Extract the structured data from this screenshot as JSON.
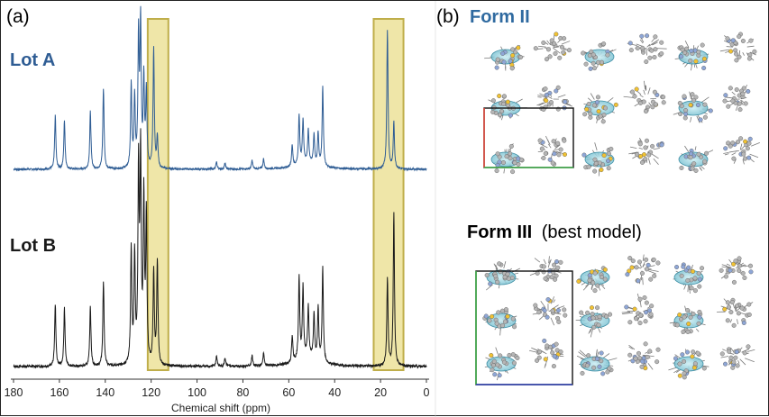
{
  "panels": {
    "a": {
      "letter": "(a)"
    },
    "b": {
      "letter": "(b)"
    }
  },
  "form_ii": {
    "title": "Form II"
  },
  "form_iii": {
    "title": "Form III",
    "subtitle": "(best model)"
  },
  "colors": {
    "lot_a": "#2f5d94",
    "lot_b": "#1a1a1a",
    "form_ii_title": "#2f6aa0",
    "highlight_fill": "#efe6a8",
    "highlight_stroke": "#bfae4a"
  },
  "chart_data": {
    "type": "line",
    "title": "",
    "xlabel": "Chemical shift (ppm)",
    "ylabel": "",
    "xlim": [
      180,
      0
    ],
    "x_reversed": true,
    "x_ticks": [
      180,
      160,
      140,
      120,
      100,
      80,
      60,
      40,
      20,
      0
    ],
    "grid": false,
    "highlight_bands": [
      {
        "from": 121.5,
        "to": 112.5
      },
      {
        "from": 23,
        "to": 10
      }
    ],
    "series": [
      {
        "name": "Lot A",
        "peaks": [
          {
            "ppm": 161.8,
            "height": 0.37
          },
          {
            "ppm": 157.8,
            "height": 0.34
          },
          {
            "ppm": 146.5,
            "height": 0.4
          },
          {
            "ppm": 140.8,
            "height": 0.56
          },
          {
            "ppm": 128.7,
            "height": 0.58
          },
          {
            "ppm": 127.2,
            "height": 0.48
          },
          {
            "ppm": 125.5,
            "height": 0.9
          },
          {
            "ppm": 124.6,
            "height": 0.98
          },
          {
            "ppm": 123.2,
            "height": 0.6
          },
          {
            "ppm": 122.1,
            "height": 0.52
          },
          {
            "ppm": 118.9,
            "height": 0.83
          },
          {
            "ppm": 117.3,
            "height": 0.22
          },
          {
            "ppm": 91.5,
            "height": 0.05
          },
          {
            "ppm": 87.8,
            "height": 0.04
          },
          {
            "ppm": 76.0,
            "height": 0.06
          },
          {
            "ppm": 71.0,
            "height": 0.07
          },
          {
            "ppm": 58.5,
            "height": 0.15
          },
          {
            "ppm": 55.5,
            "height": 0.34
          },
          {
            "ppm": 53.8,
            "height": 0.3
          },
          {
            "ppm": 51.5,
            "height": 0.22
          },
          {
            "ppm": 49.0,
            "height": 0.2
          },
          {
            "ppm": 47.2,
            "height": 0.22
          },
          {
            "ppm": 45.2,
            "height": 0.55
          },
          {
            "ppm": 17.0,
            "height": 0.96
          },
          {
            "ppm": 14.2,
            "height": 0.32
          }
        ]
      },
      {
        "name": "Lot B",
        "peaks": [
          {
            "ppm": 161.8,
            "height": 0.3
          },
          {
            "ppm": 157.8,
            "height": 0.28
          },
          {
            "ppm": 146.5,
            "height": 0.29
          },
          {
            "ppm": 140.8,
            "height": 0.41
          },
          {
            "ppm": 128.7,
            "height": 0.56
          },
          {
            "ppm": 127.2,
            "height": 0.52
          },
          {
            "ppm": 125.5,
            "height": 0.92
          },
          {
            "ppm": 124.6,
            "height": 0.98
          },
          {
            "ppm": 123.2,
            "height": 0.78
          },
          {
            "ppm": 122.1,
            "height": 0.7
          },
          {
            "ppm": 118.9,
            "height": 0.45
          },
          {
            "ppm": 117.3,
            "height": 0.5
          },
          {
            "ppm": 91.5,
            "height": 0.05
          },
          {
            "ppm": 87.8,
            "height": 0.04
          },
          {
            "ppm": 76.0,
            "height": 0.05
          },
          {
            "ppm": 71.0,
            "height": 0.06
          },
          {
            "ppm": 58.5,
            "height": 0.13
          },
          {
            "ppm": 55.5,
            "height": 0.4
          },
          {
            "ppm": 53.8,
            "height": 0.34
          },
          {
            "ppm": 51.5,
            "height": 0.24
          },
          {
            "ppm": 49.0,
            "height": 0.22
          },
          {
            "ppm": 47.2,
            "height": 0.25
          },
          {
            "ppm": 45.2,
            "height": 0.46
          },
          {
            "ppm": 17.0,
            "height": 0.42
          },
          {
            "ppm": 14.2,
            "height": 0.74
          }
        ]
      }
    ]
  }
}
